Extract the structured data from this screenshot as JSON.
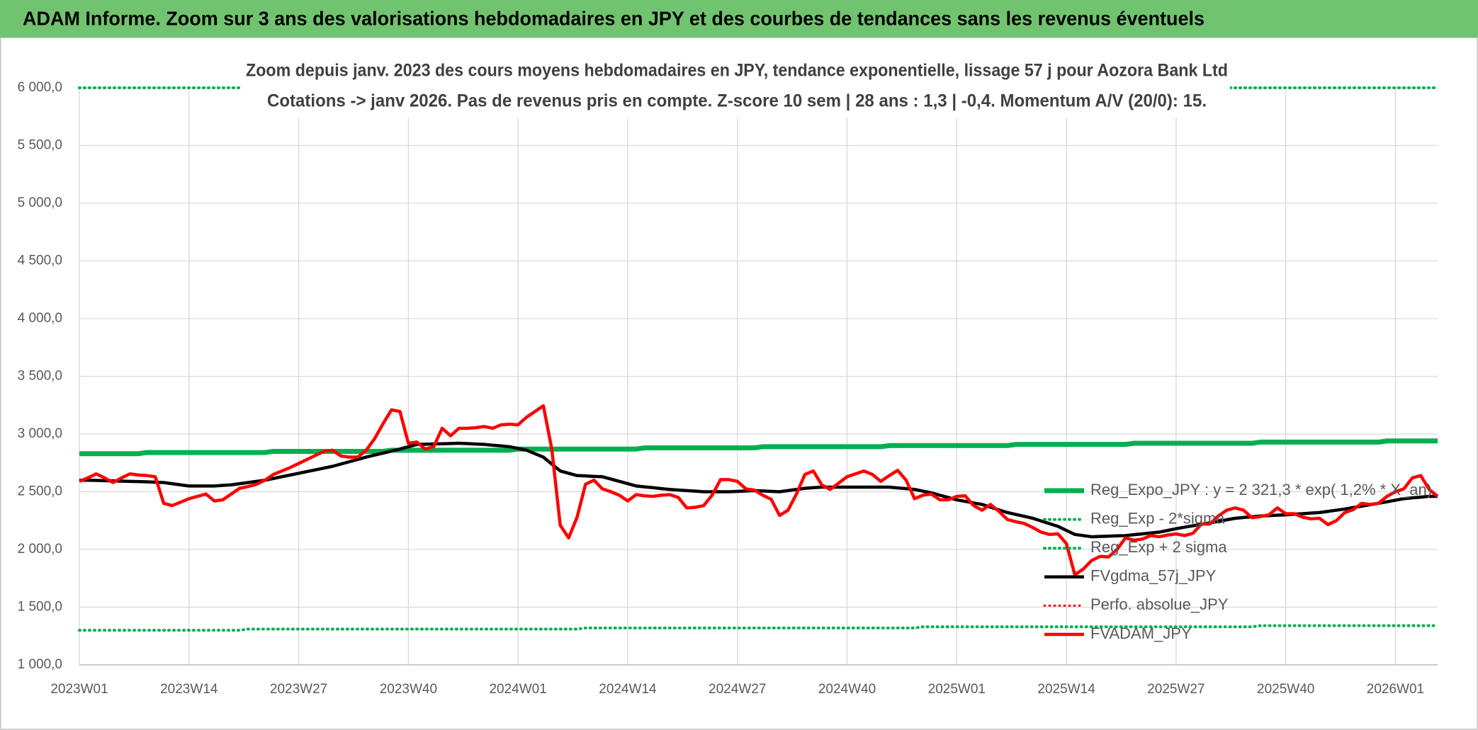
{
  "chart_data": {
    "type": "line",
    "header": "ADAM Informe. Zoom sur 3 ans des valorisations hebdomadaires en JPY et des courbes de tendances sans les revenus éventuels",
    "title": "Zoom depuis janv. 2023 des cours moyens hebdomadaires en JPY, tendance exponentielle, lissage 57 j pour Aozora Bank Ltd",
    "subtitle": "Cotations -> janv 2026. Pas de revenus pris en compte. Z-score 10 sem | 28 ans : 1,3 | -0,4. Momentum A/V (20/0): 15.",
    "categories": [
      "2023W01",
      null,
      null,
      null,
      null,
      null,
      null,
      null,
      null,
      null,
      null,
      null,
      null,
      "2023W14",
      null,
      null,
      null,
      null,
      null,
      null,
      null,
      null,
      null,
      null,
      null,
      null,
      "2023W27",
      null,
      null,
      null,
      null,
      null,
      null,
      null,
      null,
      null,
      null,
      null,
      null,
      "2023W40",
      null,
      null,
      null,
      null,
      null,
      null,
      null,
      null,
      null,
      null,
      null,
      null,
      "2024W01",
      null,
      null,
      null,
      null,
      null,
      null,
      null,
      null,
      null,
      null,
      null,
      null,
      "2024W14",
      null,
      null,
      null,
      null,
      null,
      null,
      null,
      null,
      null,
      null,
      null,
      null,
      "2024W27",
      null,
      null,
      null,
      null,
      null,
      null,
      null,
      null,
      null,
      null,
      null,
      null,
      "2024W40",
      null,
      null,
      null,
      null,
      null,
      null,
      null,
      null,
      null,
      null,
      null,
      null,
      "2025W01",
      null,
      null,
      null,
      null,
      null,
      null,
      null,
      null,
      null,
      null,
      null,
      null,
      "2025W14",
      null,
      null,
      null,
      null,
      null,
      null,
      null,
      null,
      null,
      null,
      null,
      null,
      "2025W27",
      null,
      null,
      null,
      null,
      null,
      null,
      null,
      null,
      null,
      null,
      null,
      null,
      "2025W40",
      null,
      null,
      null,
      null,
      null,
      null,
      null,
      null,
      null,
      null,
      null,
      null,
      "2026W01",
      null,
      null,
      null,
      null,
      null
    ],
    "ylim": [
      1000,
      6000
    ],
    "yticks": [
      {
        "value": 1000,
        "label": "1 000,0"
      },
      {
        "value": 1500,
        "label": "1 500,0"
      },
      {
        "value": 2000,
        "label": "2 000,0"
      },
      {
        "value": 2500,
        "label": "2 500,0"
      },
      {
        "value": 3000,
        "label": "3 000,0"
      },
      {
        "value": 3500,
        "label": "3 500,0"
      },
      {
        "value": 4000,
        "label": "4 000,0"
      },
      {
        "value": 4500,
        "label": "4 500,0"
      },
      {
        "value": 5000,
        "label": "5 000,0"
      },
      {
        "value": 5500,
        "label": "5 500,0"
      },
      {
        "value": 6000,
        "label": "6 000,0"
      }
    ],
    "grid": true,
    "legend": "right",
    "series": [
      {
        "name": "Reg_Expo_JPY : y = 2 321,3 * exp( 1,2% * X_an)",
        "color": "#00b050",
        "line_style": "solid",
        "values": [
          2830,
          2830,
          2830,
          2830,
          2830,
          2830,
          2830,
          2830,
          2840,
          2840,
          2840,
          2840,
          2840,
          2840,
          2840,
          2840,
          2840,
          2840,
          2840,
          2840,
          2840,
          2840,
          2840,
          2850,
          2850,
          2850,
          2850,
          2850,
          2850,
          2850,
          2850,
          2850,
          2850,
          2850,
          2850,
          2850,
          2850,
          2860,
          2860,
          2860,
          2860,
          2860,
          2860,
          2860,
          2860,
          2860,
          2860,
          2860,
          2860,
          2860,
          2860,
          2860,
          2870,
          2870,
          2870,
          2870,
          2870,
          2870,
          2870,
          2870,
          2870,
          2870,
          2870,
          2870,
          2870,
          2870,
          2870,
          2880,
          2880,
          2880,
          2880,
          2880,
          2880,
          2880,
          2880,
          2880,
          2880,
          2880,
          2880,
          2880,
          2880,
          2890,
          2890,
          2890,
          2890,
          2890,
          2890,
          2890,
          2890,
          2890,
          2890,
          2890,
          2890,
          2890,
          2890,
          2890,
          2900,
          2900,
          2900,
          2900,
          2900,
          2900,
          2900,
          2900,
          2900,
          2900,
          2900,
          2900,
          2900,
          2900,
          2900,
          2910,
          2910,
          2910,
          2910,
          2910,
          2910,
          2910,
          2910,
          2910,
          2910,
          2910,
          2910,
          2910,
          2910,
          2920,
          2920,
          2920,
          2920,
          2920,
          2920,
          2920,
          2920,
          2920,
          2920,
          2920,
          2920,
          2920,
          2920,
          2920,
          2930,
          2930,
          2930,
          2930,
          2930,
          2930,
          2930,
          2930,
          2930,
          2930,
          2930,
          2930,
          2930,
          2930,
          2930,
          2940,
          2940,
          2940,
          2940,
          2940,
          2940,
          2940
        ]
      },
      {
        "name": "Reg_Exp - 2*sigma",
        "color": "#00b050",
        "line_style": "dotted",
        "values": [
          1300,
          1300,
          1300,
          1300,
          1300,
          1300,
          1300,
          1300,
          1300,
          1300,
          1300,
          1300,
          1300,
          1300,
          1300,
          1300,
          1300,
          1300,
          1300,
          1300,
          1310,
          1310,
          1310,
          1310,
          1310,
          1310,
          1310,
          1310,
          1310,
          1310,
          1310,
          1310,
          1310,
          1310,
          1310,
          1310,
          1310,
          1310,
          1310,
          1310,
          1310,
          1310,
          1310,
          1310,
          1310,
          1310,
          1310,
          1310,
          1310,
          1310,
          1310,
          1310,
          1310,
          1310,
          1310,
          1310,
          1310,
          1310,
          1310,
          1310,
          1320,
          1320,
          1320,
          1320,
          1320,
          1320,
          1320,
          1320,
          1320,
          1320,
          1320,
          1320,
          1320,
          1320,
          1320,
          1320,
          1320,
          1320,
          1320,
          1320,
          1320,
          1320,
          1320,
          1320,
          1320,
          1320,
          1320,
          1320,
          1320,
          1320,
          1320,
          1320,
          1320,
          1320,
          1320,
          1320,
          1320,
          1320,
          1320,
          1320,
          1330,
          1330,
          1330,
          1330,
          1330,
          1330,
          1330,
          1330,
          1330,
          1330,
          1330,
          1330,
          1330,
          1330,
          1330,
          1330,
          1330,
          1330,
          1330,
          1330,
          1330,
          1330,
          1330,
          1330,
          1330,
          1330,
          1330,
          1330,
          1330,
          1330,
          1330,
          1330,
          1330,
          1330,
          1330,
          1330,
          1330,
          1330,
          1330,
          1330,
          1340,
          1340,
          1340,
          1340,
          1340,
          1340,
          1340,
          1340,
          1340,
          1340,
          1340,
          1340,
          1340,
          1340,
          1340,
          1340,
          1340,
          1340,
          1340,
          1340,
          1340,
          1340
        ]
      },
      {
        "name": "Reg_Exp + 2 sigma",
        "color": "#00b050",
        "line_style": "dotted",
        "values": [
          6000,
          6000,
          6000,
          6000,
          6000,
          6000,
          6000,
          6000,
          6000,
          6000,
          6000,
          6000,
          6000,
          6000,
          6000,
          6000,
          6000,
          6000,
          6000,
          6000,
          6000,
          6000,
          6000,
          6000,
          6000,
          6000,
          6000,
          6000,
          6000,
          6000,
          6000,
          6000,
          6000,
          6000,
          6000,
          6000,
          6000,
          6000,
          6000,
          6000,
          6000,
          6000,
          6000,
          6000,
          6000,
          6000,
          6000,
          6000,
          6000,
          6000,
          6000,
          6000,
          6000,
          6000,
          6000,
          6000,
          6000,
          6000,
          6000,
          6000,
          6000,
          6000,
          6000,
          6000,
          6000,
          6000,
          6000,
          6000,
          6000,
          6000,
          6000,
          6000,
          6000,
          6000,
          6000,
          6000,
          6000,
          6000,
          6000,
          6000,
          6000,
          6000,
          6000,
          6000,
          6000,
          6000,
          6000,
          6000,
          6000,
          6000,
          6000,
          6000,
          6000,
          6000,
          6000,
          6000,
          6000,
          6000,
          6000,
          6000,
          6000,
          6000,
          6000,
          6000,
          6000,
          6000,
          6000,
          6000,
          6000,
          6000,
          6000,
          6000,
          6000,
          6000,
          6000,
          6000,
          6000,
          6000,
          6000,
          6000,
          6000,
          6000,
          6000,
          6000,
          6000,
          6000,
          6000,
          6000,
          6000,
          6000,
          6000,
          6000,
          6000,
          6000,
          6000,
          6000,
          6000,
          6000,
          6000,
          6000,
          6000,
          6000,
          6000,
          6000,
          6000,
          6000,
          6000,
          6000,
          6000,
          6000,
          6000,
          6000,
          6000,
          6000,
          6000,
          6000,
          6000,
          6000,
          6000,
          6000,
          6000,
          6000
        ]
      },
      {
        "name": "FVgdma_57j_JPY",
        "color": "#000000",
        "line_style": "solid",
        "values": [
          2600,
          2600,
          2598,
          2596,
          2594,
          2592,
          2590,
          2588,
          2586,
          2583,
          2580,
          2570,
          2560,
          2550,
          2550,
          2550,
          2550,
          2555,
          2560,
          2570,
          2580,
          2590,
          2600,
          2615,
          2630,
          2645,
          2660,
          2675,
          2690,
          2705,
          2720,
          2740,
          2760,
          2780,
          2800,
          2818,
          2835,
          2852,
          2870,
          2890,
          2910,
          2912,
          2914,
          2916,
          2918,
          2920,
          2917,
          2913,
          2910,
          2903,
          2897,
          2890,
          2875,
          2860,
          2830,
          2800,
          2740,
          2680,
          2660,
          2640,
          2637,
          2633,
          2630,
          2610,
          2590,
          2570,
          2550,
          2542,
          2535,
          2527,
          2520,
          2515,
          2510,
          2505,
          2500,
          2500,
          2500,
          2500,
          2503,
          2507,
          2510,
          2507,
          2503,
          2500,
          2510,
          2520,
          2530,
          2535,
          2540,
          2540,
          2540,
          2540,
          2540,
          2540,
          2540,
          2540,
          2540,
          2533,
          2527,
          2520,
          2505,
          2490,
          2470,
          2450,
          2430,
          2417,
          2403,
          2390,
          2367,
          2343,
          2320,
          2303,
          2287,
          2270,
          2247,
          2223,
          2200,
          2165,
          2130,
          2120,
          2110,
          2113,
          2115,
          2118,
          2120,
          2128,
          2135,
          2143,
          2150,
          2165,
          2180,
          2193,
          2205,
          2218,
          2230,
          2243,
          2257,
          2270,
          2277,
          2283,
          2290,
          2293,
          2297,
          2300,
          2305,
          2310,
          2315,
          2320,
          2330,
          2340,
          2350,
          2363,
          2375,
          2388,
          2400,
          2413,
          2427,
          2440,
          2447,
          2453,
          2460,
          2460
        ]
      },
      {
        "name": "Perfo. absolue_JPY",
        "color": "#ff0000",
        "line_style": "dotted",
        "values": [
          null,
          null,
          null,
          null,
          null,
          null,
          null,
          null,
          null,
          null,
          null,
          null,
          null,
          null,
          null,
          null,
          null,
          null,
          null,
          null,
          null,
          null,
          null,
          null,
          null,
          null,
          null,
          null,
          null,
          null,
          null,
          null,
          null,
          null,
          null,
          null,
          null,
          null,
          null,
          null,
          null,
          null,
          null,
          null,
          null,
          null,
          null,
          null,
          null,
          null,
          null,
          null,
          null,
          null,
          null,
          null,
          null,
          null,
          null,
          null,
          null,
          null,
          null,
          null,
          null,
          null,
          null,
          null,
          null,
          null,
          null,
          null,
          null,
          null,
          null,
          null,
          null,
          null,
          null,
          null,
          null,
          null,
          null,
          null,
          null,
          null,
          null,
          null,
          null,
          null,
          null,
          null,
          null,
          null,
          null,
          null,
          null,
          null,
          null,
          null,
          null,
          null,
          null,
          null,
          null,
          null,
          null,
          null,
          null,
          null,
          null,
          null,
          null,
          null,
          null,
          null,
          null,
          null,
          null,
          null,
          null,
          null,
          null,
          null,
          null,
          null,
          null,
          null,
          null,
          null,
          null,
          null,
          null,
          null,
          null,
          null,
          null,
          null,
          null,
          null,
          null,
          null,
          null,
          null,
          null,
          null,
          null,
          null,
          null,
          null,
          null,
          null,
          null,
          null,
          null,
          null,
          null,
          null,
          null,
          null,
          null,
          null
        ]
      },
      {
        "name": "FVADAM_JPY",
        "color": "#ff0000",
        "line_style": "solid",
        "values": [
          2590,
          2620,
          2655,
          2620,
          2580,
          2620,
          2655,
          2645,
          2640,
          2630,
          2400,
          2380,
          2410,
          2440,
          2460,
          2480,
          2420,
          2430,
          2480,
          2530,
          2545,
          2565,
          2600,
          2650,
          2680,
          2710,
          2745,
          2780,
          2815,
          2850,
          2860,
          2810,
          2800,
          2800,
          2860,
          2960,
          3090,
          3210,
          3195,
          2920,
          2930,
          2870,
          2890,
          3050,
          2985,
          3050,
          3050,
          3055,
          3065,
          3050,
          3080,
          3085,
          3080,
          3145,
          3195,
          3245,
          2870,
          2210,
          2100,
          2280,
          2565,
          2600,
          2525,
          2500,
          2470,
          2420,
          2475,
          2465,
          2460,
          2470,
          2475,
          2450,
          2360,
          2365,
          2380,
          2470,
          2605,
          2605,
          2590,
          2525,
          2515,
          2470,
          2435,
          2295,
          2340,
          2480,
          2650,
          2680,
          2560,
          2520,
          2575,
          2630,
          2655,
          2680,
          2650,
          2590,
          2640,
          2685,
          2600,
          2440,
          2470,
          2480,
          2430,
          2430,
          2460,
          2465,
          2380,
          2340,
          2390,
          2330,
          2260,
          2240,
          2225,
          2190,
          2150,
          2130,
          2135,
          2050,
          1780,
          1830,
          1905,
          1940,
          1935,
          2000,
          2100,
          2080,
          2090,
          2120,
          2110,
          2125,
          2135,
          2120,
          2140,
          2220,
          2220,
          2290,
          2340,
          2360,
          2340,
          2275,
          2285,
          2300,
          2360,
          2310,
          2310,
          2280,
          2265,
          2270,
          2215,
          2250,
          2320,
          2345,
          2400,
          2390,
          2400,
          2460,
          2500,
          2525,
          2620,
          2640,
          2520,
          2460
        ]
      }
    ]
  }
}
